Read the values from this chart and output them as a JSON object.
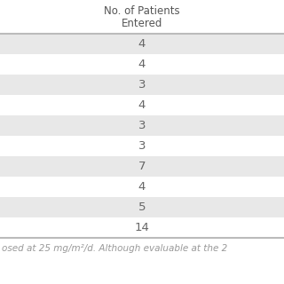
{
  "header_line1": "No. of Patients",
  "header_line2": "Entered",
  "values": [
    "4",
    "4",
    "3",
    "4",
    "3",
    "3",
    "7",
    "4",
    "5",
    "14"
  ],
  "footer_text": "osed at 25 mg/m²/d. Although evaluable at the 2",
  "bg_color_odd": "#e8e8e8",
  "bg_color_even": "#ffffff",
  "text_color": "#666666",
  "header_color": "#555555",
  "footer_color": "#999999",
  "figure_bg": "#ffffff",
  "border_color": "#bbbbbb",
  "header_fontsize": 8.5,
  "value_fontsize": 9.5,
  "footer_fontsize": 7.5
}
